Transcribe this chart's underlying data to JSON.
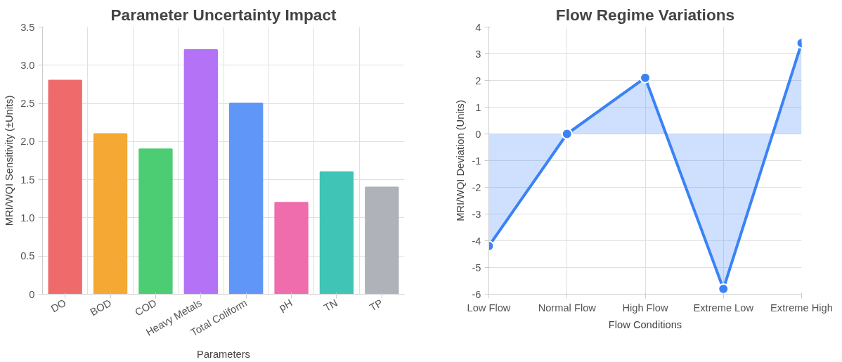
{
  "chart_data": [
    {
      "type": "bar",
      "title": "Parameter Uncertainty Impact",
      "xlabel": "Parameters",
      "ylabel": "MRI/WQI Sensitivity (±Units)",
      "categories": [
        "DO",
        "BOD",
        "COD",
        "Heavy Metals",
        "Total Coliform",
        "pH",
        "TN",
        "TP"
      ],
      "values": [
        2.8,
        2.1,
        1.9,
        3.2,
        2.5,
        1.2,
        1.6,
        1.4
      ],
      "colors": [
        "#ef6b6b",
        "#f5a833",
        "#4ccd74",
        "#b472f7",
        "#5f96f7",
        "#ef6dad",
        "#3fc4b5",
        "#afb2b8"
      ],
      "ylim": [
        0,
        3.5
      ],
      "yticks": [
        0,
        0.5,
        {
          "value": 1,
          "label": "1.0"
        },
        1.5,
        {
          "value": 2,
          "label": "2.0"
        },
        2.5,
        {
          "value": 3,
          "label": "3.0"
        },
        3.5
      ],
      "grid": true
    },
    {
      "type": "area",
      "title": "Flow Regime Variations",
      "xlabel": "Flow Conditions",
      "ylabel": "MRI/WQI Deviation (Units)",
      "categories": [
        "Low Flow",
        "Normal Flow",
        "High Flow",
        "Extreme Low",
        "Extreme High"
      ],
      "series": [
        {
          "color": "#3b82f6",
          "values": [
            -4.2,
            0,
            2.1,
            -5.8,
            3.4
          ]
        }
      ],
      "ylim": [
        -6,
        4
      ],
      "yticks": [
        -6,
        -5,
        -4,
        -3,
        -2,
        -1,
        0,
        1,
        2,
        3,
        4
      ],
      "grid": true,
      "marker": "circle",
      "line_style": "solid"
    }
  ]
}
